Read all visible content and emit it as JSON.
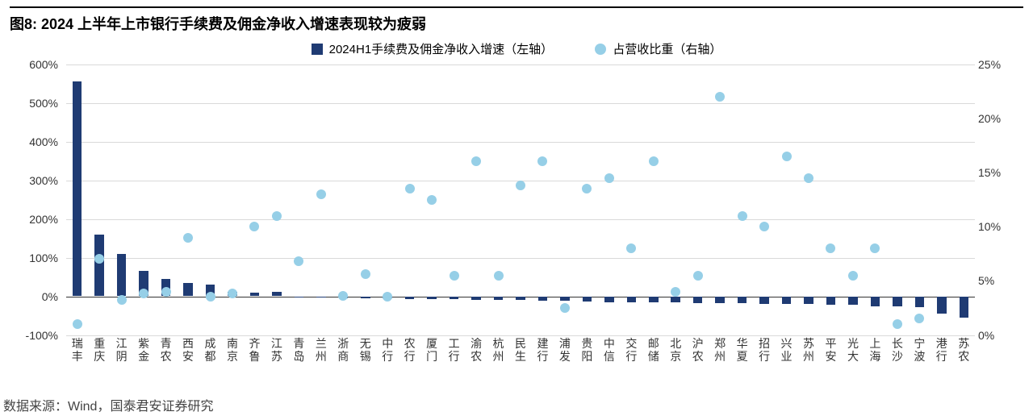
{
  "title": "图8:  2024 上半年上市银行手续费及佣金净收入增速表现较为疲弱",
  "source": "数据来源：Wind，国泰君安证券研究",
  "legend": {
    "bar_label": "2024H1手续费及佣金净收入增速（左轴）",
    "dot_label": "占营收比重（右轴）"
  },
  "chart": {
    "type": "bar+scatter-dual-axis",
    "bar_color": "#1f3b73",
    "dot_color": "#96cfe7",
    "grid_color": "#d9d9d9",
    "background_color": "#ffffff",
    "text_color": "#333333",
    "bar_width": 0.42,
    "dot_radius": 6,
    "y_left": {
      "min": -100,
      "max": 600,
      "step": 100,
      "suffix": "%"
    },
    "y_right": {
      "min": 0,
      "max": 25,
      "step": 5,
      "suffix": "%"
    },
    "categories": [
      "瑞丰",
      "重庆",
      "江阴",
      "紫金",
      "青农",
      "西安",
      "成都",
      "南京",
      "齐鲁",
      "江苏",
      "青岛",
      "兰州",
      "浙商",
      "无锡",
      "中行",
      "农行",
      "厦门",
      "工行",
      "渝农",
      "杭州",
      "民生",
      "建行",
      "浦发",
      "贵阳",
      "中信",
      "交行",
      "邮储",
      "北京",
      "沪农",
      "郑州",
      "华夏",
      "招行",
      "兴业",
      "苏州",
      "平安",
      "光大",
      "上海",
      "长沙",
      "宁波",
      "港行",
      "苏农"
    ],
    "bars": [
      555,
      160,
      110,
      65,
      45,
      35,
      30,
      12,
      10,
      12,
      -2,
      -4,
      -5,
      -6,
      -6,
      -8,
      -8,
      -8,
      -9,
      -10,
      -10,
      -12,
      -12,
      -14,
      -15,
      -15,
      -16,
      -16,
      -18,
      -18,
      -18,
      -20,
      -20,
      -20,
      -22,
      -22,
      -25,
      -25,
      -28,
      -45,
      -55
    ],
    "dots": [
      1.0,
      7.0,
      3.2,
      3.8,
      4.0,
      9.0,
      3.5,
      3.8,
      10.0,
      11.0,
      6.8,
      13.0,
      3.6,
      5.6,
      3.5,
      13.5,
      12.5,
      5.5,
      16.0,
      5.5,
      13.8,
      16.0,
      2.5,
      13.5,
      14.5,
      8.0,
      16.0,
      4.0,
      5.5,
      22.0,
      11.0,
      10.0,
      16.5,
      14.5,
      8.0,
      5.5,
      8.0,
      1.0,
      1.5,
      null,
      null
    ]
  }
}
